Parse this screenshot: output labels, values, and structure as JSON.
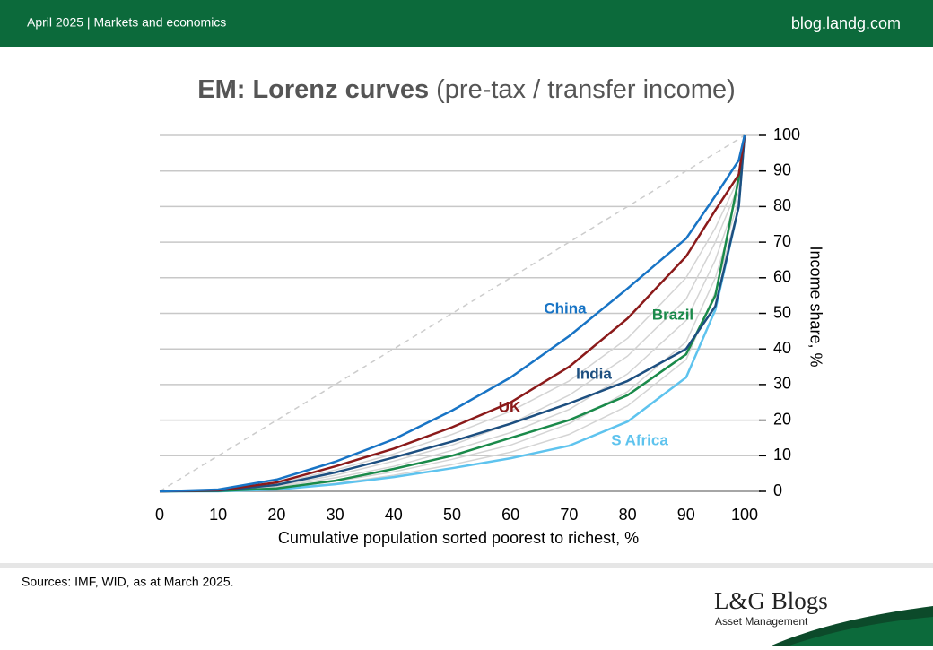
{
  "header": {
    "section": "April 2025 | Markets and economics",
    "site": "blog.landg.com"
  },
  "footer": {
    "source": "Sources: IMF, WID, as at March 2025.",
    "logo": "L&G Blogs",
    "logo_sub": "Asset Management"
  },
  "chart_data": {
    "type": "line",
    "title": "EM: Lorenz curves",
    "subtitle": "(pre-tax / transfer income)",
    "x_label": "Cumulative population sorted poorest to richest, %",
    "y_label": "Income share, %",
    "x": [
      0,
      10,
      20,
      30,
      40,
      50,
      60,
      70,
      80,
      90,
      95,
      99,
      100
    ],
    "xlim": [
      0,
      100
    ],
    "xticks": [
      0,
      10,
      20,
      30,
      40,
      50,
      60,
      70,
      80,
      90,
      100
    ],
    "ylim": [
      0,
      100
    ],
    "yticks": [
      0,
      10,
      20,
      30,
      40,
      50,
      60,
      70,
      80,
      90,
      100
    ],
    "grid": true,
    "series": [
      {
        "color": "#d4d4d4",
        "values": [
          0,
          0.3,
          2.2,
          6,
          10.5,
          16,
          22.5,
          31,
          43,
          60,
          74,
          88,
          100
        ]
      },
      {
        "color": "#d4d4d4",
        "values": [
          0,
          0.2,
          1.5,
          4.5,
          8.5,
          13,
          19,
          27,
          38,
          54,
          70,
          86,
          100
        ]
      },
      {
        "color": "#d4d4d4",
        "values": [
          0,
          0.2,
          1.2,
          3.8,
          7,
          11.5,
          16.5,
          23,
          33,
          48,
          65,
          84,
          100
        ]
      },
      {
        "color": "#d4d4d4",
        "values": [
          0,
          0.1,
          0.8,
          2.8,
          5.5,
          9,
          13,
          19,
          28,
          42,
          60,
          82,
          100
        ]
      },
      {
        "color": "#d4d4d4",
        "values": [
          0,
          0.1,
          0.6,
          2.2,
          4.5,
          7.5,
          11,
          16,
          24,
          37,
          56,
          80,
          100
        ]
      },
      {
        "name": "S Africa",
        "color": "#5ec3ee",
        "values": [
          0,
          0,
          0.5,
          2,
          4,
          6.5,
          9.3,
          12.8,
          19.6,
          32,
          51,
          80,
          100
        ]
      },
      {
        "name": "Brazil",
        "color": "#1a8a4a",
        "values": [
          0,
          0.1,
          0.8,
          3,
          6.3,
          10,
          15,
          20,
          27,
          38.5,
          55,
          88,
          100
        ]
      },
      {
        "name": "India",
        "color": "#1d4f80",
        "values": [
          0,
          0.2,
          1.8,
          5.3,
          9.5,
          14,
          19,
          24.7,
          31,
          40,
          52,
          80,
          100
        ]
      },
      {
        "name": "UK",
        "color": "#8b1a1a",
        "values": [
          0,
          0.3,
          2.5,
          7,
          12,
          18,
          25,
          35,
          48.6,
          66,
          79,
          89,
          100
        ]
      },
      {
        "name": "China",
        "color": "#1874c5",
        "values": [
          0,
          0.5,
          3.3,
          8.3,
          14.6,
          22.7,
          32,
          43.6,
          57,
          71,
          83,
          93,
          100
        ]
      }
    ]
  }
}
